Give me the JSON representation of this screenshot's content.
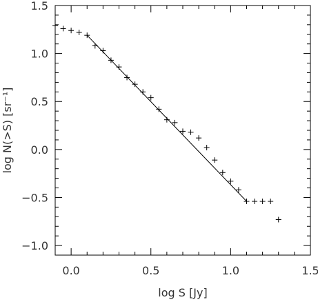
{
  "chart_data": {
    "type": "scatter",
    "xlabel": "log S [Jy]",
    "ylabel": "log N(>S)  [sr⁻¹]",
    "xlim": [
      -0.1,
      1.5
    ],
    "ylim": [
      -1.1,
      1.5
    ],
    "xticks": [
      {
        "value": 0.0,
        "label": "0.0"
      },
      {
        "value": 0.5,
        "label": "0.5"
      },
      {
        "value": 1.0,
        "label": "1.0"
      },
      {
        "value": 1.5,
        "label": "1.5"
      }
    ],
    "yticks": [
      {
        "value": -1.0,
        "label": "−1.0"
      },
      {
        "value": -0.5,
        "label": "−0.5"
      },
      {
        "value": 0.0,
        "label": "0.0"
      },
      {
        "value": 0.5,
        "label": "0.5"
      },
      {
        "value": 1.0,
        "label": "1.0"
      },
      {
        "value": 1.5,
        "label": "1.5"
      }
    ],
    "x_minor_step": 0.1,
    "y_minor_step": 0.1,
    "points": [
      {
        "x": -0.1,
        "y": 1.29
      },
      {
        "x": -0.05,
        "y": 1.26
      },
      {
        "x": 0.0,
        "y": 1.24
      },
      {
        "x": 0.05,
        "y": 1.22
      },
      {
        "x": 0.1,
        "y": 1.19
      },
      {
        "x": 0.15,
        "y": 1.08
      },
      {
        "x": 0.2,
        "y": 1.03
      },
      {
        "x": 0.25,
        "y": 0.93
      },
      {
        "x": 0.3,
        "y": 0.86
      },
      {
        "x": 0.35,
        "y": 0.75
      },
      {
        "x": 0.4,
        "y": 0.68
      },
      {
        "x": 0.45,
        "y": 0.6
      },
      {
        "x": 0.5,
        "y": 0.54
      },
      {
        "x": 0.55,
        "y": 0.42
      },
      {
        "x": 0.6,
        "y": 0.31
      },
      {
        "x": 0.65,
        "y": 0.28
      },
      {
        "x": 0.7,
        "y": 0.19
      },
      {
        "x": 0.75,
        "y": 0.18
      },
      {
        "x": 0.8,
        "y": 0.12
      },
      {
        "x": 0.85,
        "y": 0.02
      },
      {
        "x": 0.9,
        "y": -0.11
      },
      {
        "x": 0.95,
        "y": -0.24
      },
      {
        "x": 1.0,
        "y": -0.33
      },
      {
        "x": 1.05,
        "y": -0.42
      },
      {
        "x": 1.1,
        "y": -0.54
      },
      {
        "x": 1.15,
        "y": -0.54
      },
      {
        "x": 1.2,
        "y": -0.54
      },
      {
        "x": 1.25,
        "y": -0.54
      },
      {
        "x": 1.3,
        "y": -0.73
      }
    ],
    "fit_line": {
      "x": [
        0.1,
        1.1
      ],
      "y": [
        1.19,
        -0.54
      ]
    },
    "grid": false,
    "marker": "+",
    "line_color": "#000000",
    "marker_color": "#000000",
    "text_color": "#333333"
  }
}
